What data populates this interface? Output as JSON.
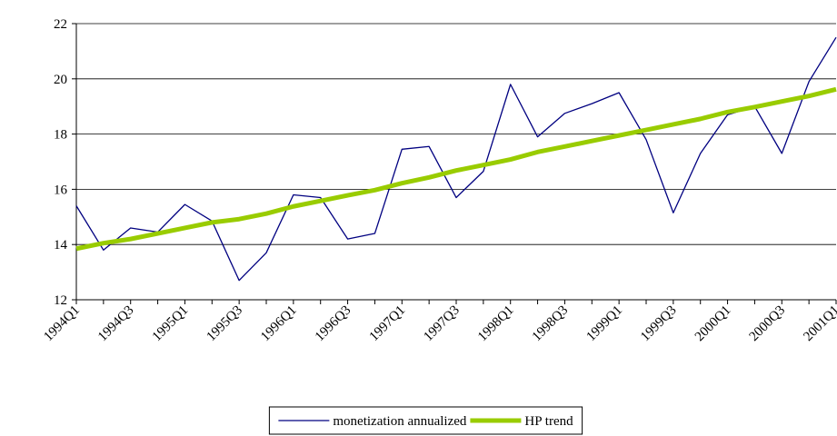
{
  "chart_data": {
    "type": "line",
    "categories": [
      "1994Q1",
      null,
      "1994Q3",
      null,
      "1995Q1",
      null,
      "1995Q3",
      null,
      "1996Q1",
      null,
      "1996Q3",
      null,
      "1997Q1",
      null,
      "1997Q3",
      null,
      "1998Q1",
      null,
      "1998Q3",
      null,
      "1999Q1",
      null,
      "1999Q3",
      null,
      "2000Q1",
      null,
      "2000Q3",
      null,
      "2001Q1"
    ],
    "series": [
      {
        "name": "monetization annualized",
        "color": "#000080",
        "width": 1.3,
        "values": [
          15.4,
          13.8,
          14.6,
          14.45,
          15.45,
          14.85,
          12.7,
          13.7,
          15.8,
          15.7,
          14.2,
          14.4,
          17.45,
          17.55,
          15.7,
          16.65,
          19.8,
          17.9,
          18.75,
          19.1,
          19.5,
          17.8,
          15.15,
          17.3,
          18.7,
          19.0,
          17.3,
          19.9,
          21.5
        ]
      },
      {
        "name": "HP trend",
        "color": "#99cc00",
        "width": 5,
        "values": [
          13.85,
          14.05,
          14.2,
          14.4,
          14.6,
          14.8,
          14.92,
          15.12,
          15.38,
          15.58,
          15.78,
          15.97,
          16.22,
          16.43,
          16.68,
          16.88,
          17.08,
          17.35,
          17.55,
          17.75,
          17.95,
          18.15,
          18.35,
          18.55,
          18.8,
          18.98,
          19.18,
          19.38,
          19.62
        ]
      }
    ],
    "ylim": [
      12,
      22
    ],
    "yticks": [
      12,
      14,
      16,
      18,
      20,
      22
    ],
    "grid": true,
    "legend": "bottom"
  }
}
